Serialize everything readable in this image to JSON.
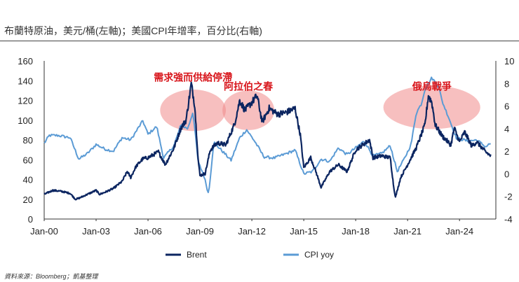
{
  "title": "布蘭特原油，美元/桶(左軸)；美國CPI年增率，百分比(右軸)",
  "source": "資料來源：Bloomberg；凱基整理",
  "chart_data": {
    "type": "line",
    "title": "布蘭特原油，美元/桶(左軸)；美國CPI年增率，百分比(右軸)",
    "x_tick_labels": [
      "Jan-00",
      "Jan-03",
      "Jan-06",
      "Jan-09",
      "Jan-12",
      "Jan-15",
      "Jan-18",
      "Jan-21",
      "Jan-24"
    ],
    "x_range": [
      2000.0,
      2026.1
    ],
    "y_left": {
      "range": [
        0,
        160
      ],
      "ticks": [
        "0",
        "20",
        "40",
        "60",
        "80",
        "100",
        "120",
        "140",
        "160"
      ]
    },
    "y_right": {
      "range": [
        -4,
        10
      ],
      "ticks": [
        "-4",
        "-2",
        "0",
        "2",
        "4",
        "6",
        "8",
        "10"
      ]
    },
    "grid": false,
    "legend_position": "bottom",
    "series": [
      {
        "name": "Brent",
        "axis": "left",
        "color": "#0b2560",
        "x": [
          2000.0,
          2000.5,
          2001.0,
          2001.5,
          2001.8,
          2002.0,
          2002.5,
          2003.0,
          2003.2,
          2003.5,
          2004.0,
          2004.5,
          2004.8,
          2005.0,
          2005.3,
          2005.7,
          2006.0,
          2006.6,
          2007.0,
          2007.5,
          2007.9,
          2008.2,
          2008.5,
          2008.7,
          2008.9,
          2009.0,
          2009.3,
          2009.6,
          2010.0,
          2010.5,
          2011.0,
          2011.3,
          2011.6,
          2012.0,
          2012.3,
          2012.6,
          2013.0,
          2013.5,
          2014.0,
          2014.5,
          2014.8,
          2015.0,
          2015.4,
          2015.7,
          2016.0,
          2016.5,
          2017.0,
          2017.5,
          2018.0,
          2018.8,
          2019.0,
          2019.5,
          2020.0,
          2020.2,
          2020.3,
          2020.6,
          2021.0,
          2021.5,
          2022.0,
          2022.2,
          2022.4,
          2022.6,
          2023.0,
          2023.5,
          2023.7,
          2024.0,
          2024.3,
          2024.7,
          2025.0,
          2025.5,
          2025.8
        ],
        "values": [
          25,
          29,
          28,
          26,
          20,
          21,
          25,
          29,
          25,
          27,
          31,
          38,
          48,
          42,
          53,
          61,
          62,
          68,
          55,
          72,
          92,
          100,
          137,
          115,
          60,
          44,
          46,
          70,
          77,
          75,
          96,
          120,
          110,
          118,
          125,
          98,
          112,
          106,
          108,
          112,
          85,
          52,
          62,
          48,
          32,
          48,
          55,
          48,
          70,
          80,
          62,
          64,
          62,
          32,
          22,
          42,
          55,
          72,
          95,
          125,
          118,
          95,
          84,
          75,
          92,
          78,
          88,
          74,
          78,
          68,
          64
        ]
      },
      {
        "name": "CPI yoy",
        "axis": "right",
        "color": "#5b9bd5",
        "x": [
          2000.0,
          2000.3,
          2000.8,
          2001.5,
          2002.0,
          2002.5,
          2003.0,
          2003.5,
          2004.0,
          2004.5,
          2005.0,
          2005.7,
          2006.0,
          2006.5,
          2006.9,
          2007.5,
          2007.9,
          2008.3,
          2008.6,
          2008.9,
          2009.2,
          2009.5,
          2009.8,
          2010.3,
          2010.8,
          2011.3,
          2011.7,
          2012.2,
          2012.7,
          2013.3,
          2014.0,
          2014.5,
          2015.0,
          2015.5,
          2016.0,
          2016.5,
          2017.0,
          2017.5,
          2018.0,
          2018.5,
          2019.0,
          2019.5,
          2020.0,
          2020.4,
          2020.8,
          2021.2,
          2021.5,
          2021.8,
          2022.0,
          2022.4,
          2022.8,
          2023.0,
          2023.4,
          2023.8,
          2024.0,
          2024.5,
          2025.0,
          2025.5,
          2025.8
        ],
        "values": [
          2.7,
          3.4,
          3.4,
          3.2,
          1.3,
          1.8,
          2.6,
          2.2,
          2.0,
          3.2,
          3.0,
          4.7,
          3.5,
          4.2,
          1.4,
          2.5,
          4.3,
          4.0,
          5.5,
          1.0,
          0.0,
          -1.8,
          2.8,
          2.0,
          1.2,
          3.2,
          3.9,
          2.8,
          1.5,
          1.4,
          1.8,
          2.1,
          0.0,
          0.2,
          1.3,
          1.1,
          2.3,
          1.7,
          2.3,
          2.9,
          1.6,
          1.8,
          2.5,
          0.2,
          1.3,
          2.6,
          5.4,
          6.2,
          7.5,
          8.5,
          7.7,
          6.4,
          4.9,
          3.2,
          3.1,
          2.9,
          3.0,
          2.4,
          2.7
        ]
      }
    ],
    "annotations": [
      {
        "text": "需求強而供給停滯",
        "x_center": 2008.6,
        "y_value": 127
      },
      {
        "text": "阿拉伯之春",
        "x_center": 2011.8,
        "y_value": 118
      },
      {
        "text": "俄烏戰爭",
        "x_center": 2022.4,
        "y_value": 118
      }
    ]
  }
}
